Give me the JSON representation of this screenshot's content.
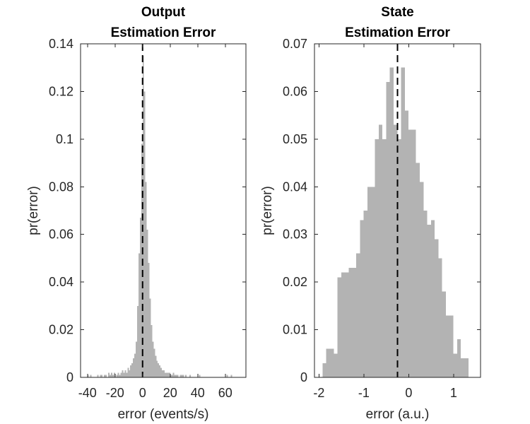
{
  "colors": {
    "bar": "#b3b3b3",
    "axis": "#262626",
    "reference_line": "#000000"
  },
  "chart_data": [
    {
      "type": "bar",
      "title": [
        "Output",
        "Estimation Error"
      ],
      "xlabel": "error (events/s)",
      "ylabel": "pr(error)",
      "xlim": [
        -45,
        75
      ],
      "ylim": [
        0,
        0.14
      ],
      "xticks": [
        -40,
        -20,
        0,
        20,
        40,
        60
      ],
      "xtick_labels": [
        "-40",
        "-20",
        "0",
        "20",
        "40",
        "60"
      ],
      "yticks": [
        0,
        0.02,
        0.04,
        0.06,
        0.08,
        0.1,
        0.12,
        0.14
      ],
      "ytick_labels": [
        "0",
        "0.02",
        "0.04",
        "0.06",
        "0.08",
        "0.1",
        "0.12",
        "0.14"
      ],
      "bin_width": 1,
      "bin_start": -40,
      "values": [
        0.001,
        0,
        0.001,
        0,
        0,
        0,
        0,
        0.001,
        0,
        0.001,
        0.001,
        0,
        0.001,
        0.001,
        0,
        0.002,
        0.001,
        0.002,
        0.001,
        0.002,
        0,
        0.001,
        0.002,
        0.001,
        0.002,
        0.003,
        0.002,
        0.003,
        0.002,
        0.004,
        0.003,
        0.005,
        0.006,
        0.008,
        0.01,
        0.015,
        0.03,
        0.052,
        0.067,
        0.098,
        0.135,
        0.12,
        0.082,
        0.062,
        0.048,
        0.033,
        0.022,
        0.015,
        0.012,
        0.009,
        0.007,
        0.006,
        0.005,
        0.004,
        0.003,
        0.003,
        0.002,
        0.002,
        0.002,
        0.002,
        0.001,
        0.001,
        0.002,
        0.001,
        0.001,
        0.001,
        0,
        0.001,
        0.001,
        0.001,
        0,
        0.001,
        0,
        0,
        0.001,
        0,
        0,
        0,
        0,
        0,
        0,
        0.001,
        0,
        0,
        0,
        0,
        0,
        0,
        0,
        0,
        0,
        0,
        0,
        0,
        0,
        0,
        0,
        0,
        0,
        0,
        0,
        0.001,
        0,
        0,
        0.001
      ],
      "reference_line_x": 0,
      "grid": false
    },
    {
      "type": "bar",
      "title": [
        "State",
        "Estimation Error"
      ],
      "xlabel": "error (a.u.)",
      "ylabel": "pr(error)",
      "xlim": [
        -2.1,
        1.6
      ],
      "ylim": [
        0,
        0.07
      ],
      "xticks": [
        -2,
        -1,
        0,
        1
      ],
      "xtick_labels": [
        "-2",
        "-1",
        "0",
        "1"
      ],
      "yticks": [
        0,
        0.01,
        0.02,
        0.03,
        0.04,
        0.05,
        0.06,
        0.07
      ],
      "ytick_labels": [
        "0",
        "0.01",
        "0.02",
        "0.03",
        "0.04",
        "0.05",
        "0.06",
        "0.07"
      ],
      "bin_width": 0.0833,
      "bin_start": -1.92,
      "values": [
        0.003,
        0.006,
        0.006,
        0.005,
        0.021,
        0.022,
        0.022,
        0.023,
        0.023,
        0.026,
        0.033,
        0.035,
        0.04,
        0.04,
        0.05,
        0.053,
        0.05,
        0.062,
        0.065,
        0.053,
        0.05,
        0.065,
        0.056,
        0.052,
        0.052,
        0.045,
        0.041,
        0.035,
        0.032,
        0.033,
        0.029,
        0.025,
        0.018,
        0.013,
        0.013,
        0.005,
        0.008,
        0.004,
        0.004
      ],
      "reference_line_x": -0.25,
      "grid": false
    }
  ]
}
